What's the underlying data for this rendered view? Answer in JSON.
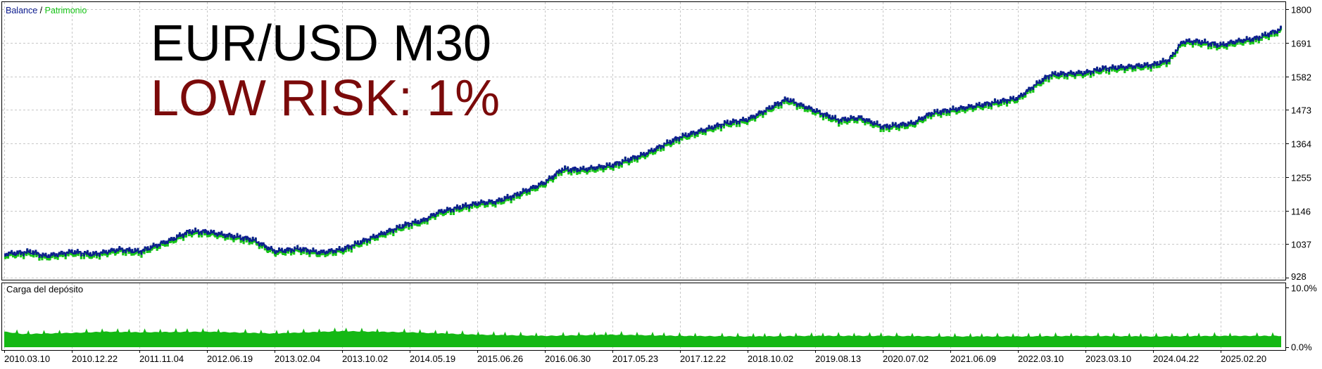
{
  "chart_data": [
    {
      "type": "line",
      "legend": {
        "placement": "top-left",
        "separator": " / "
      },
      "series": [
        {
          "name": "Balance",
          "color": "#0d1c8f"
        },
        {
          "name": "Patrimonio",
          "color": "#18c418"
        }
      ],
      "y_ticks": [
        "1800",
        "1691",
        "1582",
        "1473",
        "1364",
        "1255",
        "1146",
        "1037",
        "928"
      ],
      "ylim": [
        928,
        1800
      ],
      "grid": true,
      "balance_points": [
        [
          "2010.03.10",
          1005
        ],
        [
          "2010.07.01",
          1012
        ],
        [
          "2010.09.01",
          998
        ],
        [
          "2010.12.22",
          1012
        ],
        [
          "2011.04.01",
          1004
        ],
        [
          "2011.08.01",
          1020
        ],
        [
          "2011.11.04",
          1013
        ],
        [
          "2012.02.15",
          1050
        ],
        [
          "2012.04.20",
          1078
        ],
        [
          "2012.06.19",
          1077
        ],
        [
          "2012.09.01",
          1065
        ],
        [
          "2012.11.20",
          1052
        ],
        [
          "2013.02.04",
          1014
        ],
        [
          "2013.05.01",
          1022
        ],
        [
          "2013.07.15",
          1010
        ],
        [
          "2013.10.02",
          1020
        ],
        [
          "2014.01.15",
          1060
        ],
        [
          "2014.05.19",
          1105
        ],
        [
          "2014.08.01",
          1112
        ],
        [
          "2014.11.01",
          1140
        ],
        [
          "2015.06.26",
          1170
        ],
        [
          "2015.10.01",
          1175
        ],
        [
          "2016.01.15",
          1195
        ],
        [
          "2016.06.30",
          1238
        ],
        [
          "2016.09.20",
          1280
        ],
        [
          "2017.01.01",
          1280
        ],
        [
          "2017.05.23",
          1294
        ],
        [
          "2017.09.01",
          1330
        ],
        [
          "2017.12.22",
          1385
        ],
        [
          "2018.04.01",
          1408
        ],
        [
          "2018.07.01",
          1430
        ],
        [
          "2018.10.02",
          1442
        ],
        [
          "2019.01.15",
          1480
        ],
        [
          "2019.04.01",
          1508
        ],
        [
          "2019.06.01",
          1490
        ],
        [
          "2019.08.13",
          1470
        ],
        [
          "2019.12.01",
          1440
        ],
        [
          "2020.03.15",
          1448
        ],
        [
          "2020.07.02",
          1418
        ],
        [
          "2020.12.01",
          1430
        ],
        [
          "2021.03.01",
          1462
        ],
        [
          "2021.06.09",
          1473
        ],
        [
          "2021.11.01",
          1492
        ],
        [
          "2022.03.10",
          1512
        ],
        [
          "2022.06.01",
          1550
        ],
        [
          "2022.09.01",
          1588
        ],
        [
          "2023.03.10",
          1594
        ],
        [
          "2023.07.01",
          1608
        ],
        [
          "2023.11.01",
          1612
        ],
        [
          "2024.04.22",
          1620
        ],
        [
          "2024.07.01",
          1635
        ],
        [
          "2024.09.01",
          1695
        ],
        [
          "2024.11.01",
          1696
        ],
        [
          "2025.02.20",
          1683
        ],
        [
          "2025.04.01",
          1695
        ],
        [
          "2025.06.01",
          1705
        ],
        [
          "2025.08.15",
          1735
        ]
      ]
    },
    {
      "type": "area",
      "title": "Carga del depósito",
      "color": "#14b814",
      "y_ticks": [
        "10.0%",
        "0.0%"
      ],
      "ylim": [
        0,
        10
      ],
      "load_points": [
        [
          "2010.03.10",
          2.6
        ],
        [
          "2010.06.01",
          2.2
        ],
        [
          "2010.12.22",
          2.4
        ],
        [
          "2011.06.01",
          2.6
        ],
        [
          "2011.11.04",
          2.5
        ],
        [
          "2012.06.19",
          2.6
        ],
        [
          "2013.02.04",
          2.3
        ],
        [
          "2013.10.02",
          2.7
        ],
        [
          "2014.05.19",
          2.5
        ],
        [
          "2015.06.26",
          2.1
        ],
        [
          "2016.06.30",
          1.9
        ],
        [
          "2017.05.23",
          2.1
        ],
        [
          "2017.12.22",
          1.9
        ],
        [
          "2018.10.02",
          1.8
        ],
        [
          "2019.08.13",
          1.9
        ],
        [
          "2020.07.02",
          1.9
        ],
        [
          "2021.06.09",
          1.8
        ],
        [
          "2022.03.10",
          1.8
        ],
        [
          "2023.03.10",
          1.9
        ],
        [
          "2024.04.22",
          1.8
        ],
        [
          "2025.02.20",
          1.9
        ],
        [
          "2025.08.15",
          1.9
        ]
      ]
    }
  ],
  "x_ticks": [
    "2010.03.10",
    "2010.12.22",
    "2011.11.04",
    "2012.06.19",
    "2013.02.04",
    "2013.10.02",
    "2014.05.19",
    "2015.06.26",
    "2016.06.30",
    "2017.05.23",
    "2017.12.22",
    "2018.10.02",
    "2019.08.13",
    "2020.07.02",
    "2021.06.09",
    "2022.03.10",
    "2023.03.10",
    "2024.04.22",
    "2025.02.20"
  ],
  "overlay": {
    "line1": "EUR/USD M30",
    "line2": "LOW RISK: 1%"
  }
}
